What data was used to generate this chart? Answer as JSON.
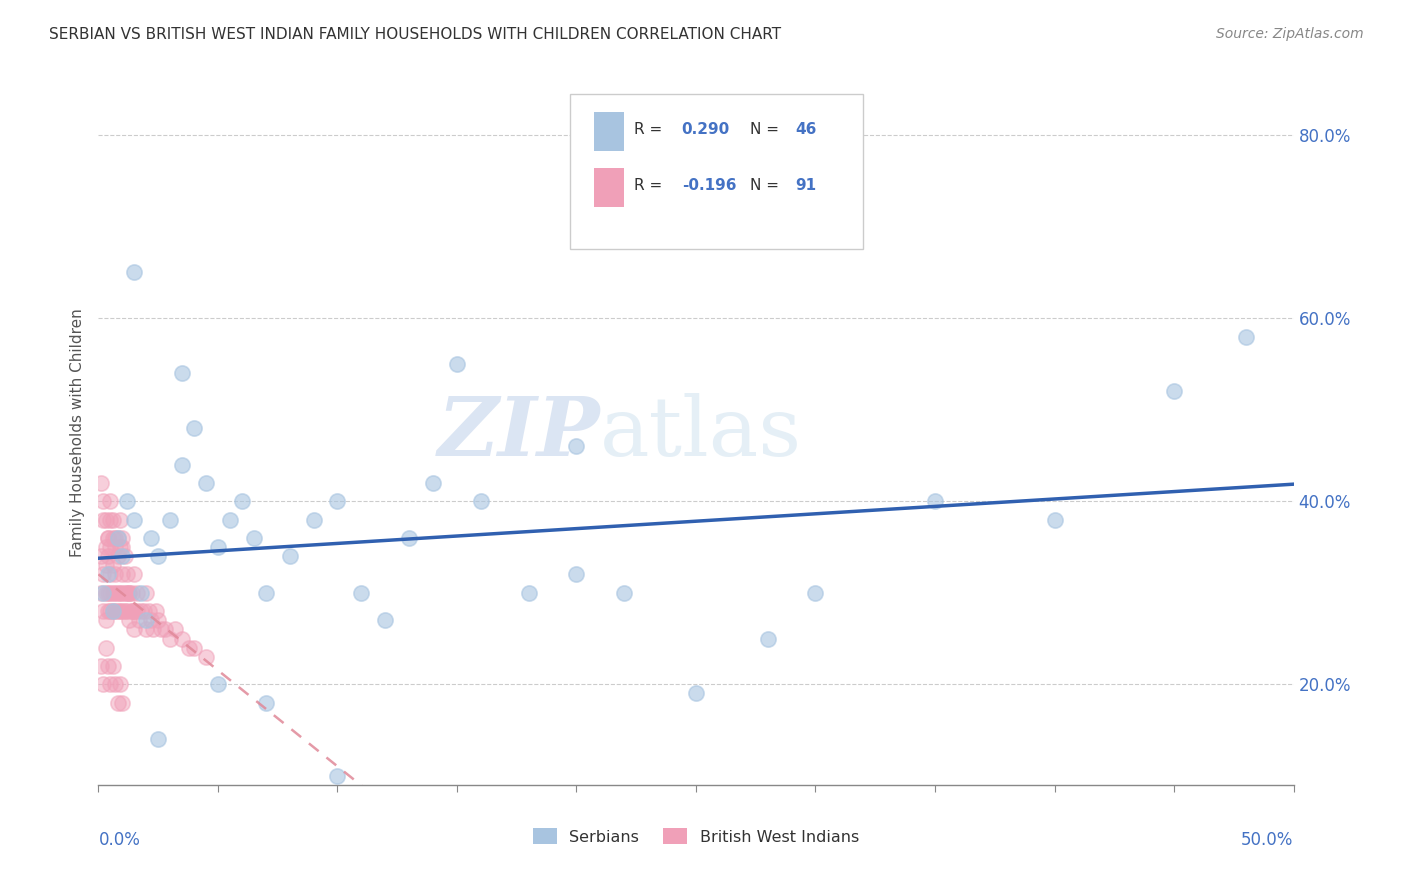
{
  "title": "SERBIAN VS BRITISH WEST INDIAN FAMILY HOUSEHOLDS WITH CHILDREN CORRELATION CHART",
  "source": "Source: ZipAtlas.com",
  "ylabel": "Family Households with Children",
  "color_serbian": "#a8c4e0",
  "color_bwi": "#f0a0b8",
  "color_serbian_line": "#3060b0",
  "color_bwi_line": "#e08898",
  "xmin": 0.0,
  "xmax": 0.5,
  "ymin": 0.09,
  "ymax": 0.86,
  "serb_x": [
    0.002,
    0.004,
    0.006,
    0.008,
    0.01,
    0.012,
    0.015,
    0.018,
    0.02,
    0.022,
    0.025,
    0.03,
    0.035,
    0.04,
    0.045,
    0.05,
    0.055,
    0.06,
    0.065,
    0.07,
    0.08,
    0.09,
    0.1,
    0.11,
    0.12,
    0.13,
    0.14,
    0.16,
    0.18,
    0.2,
    0.22,
    0.25,
    0.28,
    0.3,
    0.35,
    0.4,
    0.45,
    0.48,
    0.015,
    0.025,
    0.035,
    0.05,
    0.07,
    0.1,
    0.15,
    0.2
  ],
  "serb_y": [
    0.3,
    0.32,
    0.28,
    0.36,
    0.34,
    0.4,
    0.38,
    0.3,
    0.27,
    0.36,
    0.34,
    0.38,
    0.44,
    0.48,
    0.42,
    0.35,
    0.38,
    0.4,
    0.36,
    0.3,
    0.34,
    0.38,
    0.4,
    0.3,
    0.27,
    0.36,
    0.42,
    0.4,
    0.3,
    0.32,
    0.3,
    0.19,
    0.25,
    0.3,
    0.4,
    0.38,
    0.52,
    0.58,
    0.65,
    0.14,
    0.54,
    0.2,
    0.18,
    0.1,
    0.55,
    0.46
  ],
  "bwi_x_tight": [
    0.001,
    0.001,
    0.002,
    0.002,
    0.002,
    0.003,
    0.003,
    0.003,
    0.003,
    0.004,
    0.004,
    0.004,
    0.004,
    0.005,
    0.005,
    0.005,
    0.005,
    0.005,
    0.006,
    0.006,
    0.006,
    0.006,
    0.007,
    0.007,
    0.007,
    0.007,
    0.008,
    0.008,
    0.008,
    0.009,
    0.009,
    0.009,
    0.01,
    0.01,
    0.01,
    0.01,
    0.011,
    0.011,
    0.012,
    0.012,
    0.013,
    0.013,
    0.014,
    0.014,
    0.015,
    0.015,
    0.016,
    0.016,
    0.017,
    0.018,
    0.019,
    0.02,
    0.02,
    0.021,
    0.022,
    0.023,
    0.024,
    0.025,
    0.026,
    0.028,
    0.03,
    0.032,
    0.035,
    0.038,
    0.04,
    0.045,
    0.001,
    0.002,
    0.003,
    0.004,
    0.005,
    0.006,
    0.007,
    0.008,
    0.009,
    0.01,
    0.011,
    0.012,
    0.013,
    0.014,
    0.015,
    0.001,
    0.002,
    0.003,
    0.004,
    0.005,
    0.006,
    0.007,
    0.008,
    0.009,
    0.01
  ],
  "bwi_y_tight": [
    0.3,
    0.34,
    0.28,
    0.32,
    0.38,
    0.3,
    0.35,
    0.27,
    0.33,
    0.36,
    0.3,
    0.28,
    0.34,
    0.32,
    0.38,
    0.3,
    0.28,
    0.35,
    0.3,
    0.36,
    0.28,
    0.33,
    0.3,
    0.35,
    0.28,
    0.32,
    0.3,
    0.36,
    0.28,
    0.3,
    0.35,
    0.28,
    0.32,
    0.3,
    0.28,
    0.35,
    0.3,
    0.28,
    0.3,
    0.28,
    0.3,
    0.27,
    0.28,
    0.3,
    0.28,
    0.32,
    0.28,
    0.3,
    0.27,
    0.28,
    0.28,
    0.26,
    0.3,
    0.28,
    0.27,
    0.26,
    0.28,
    0.27,
    0.26,
    0.26,
    0.25,
    0.26,
    0.25,
    0.24,
    0.24,
    0.23,
    0.42,
    0.4,
    0.38,
    0.36,
    0.4,
    0.38,
    0.36,
    0.34,
    0.38,
    0.36,
    0.34,
    0.32,
    0.3,
    0.28,
    0.26,
    0.22,
    0.2,
    0.24,
    0.22,
    0.2,
    0.22,
    0.2,
    0.18,
    0.2,
    0.18
  ]
}
